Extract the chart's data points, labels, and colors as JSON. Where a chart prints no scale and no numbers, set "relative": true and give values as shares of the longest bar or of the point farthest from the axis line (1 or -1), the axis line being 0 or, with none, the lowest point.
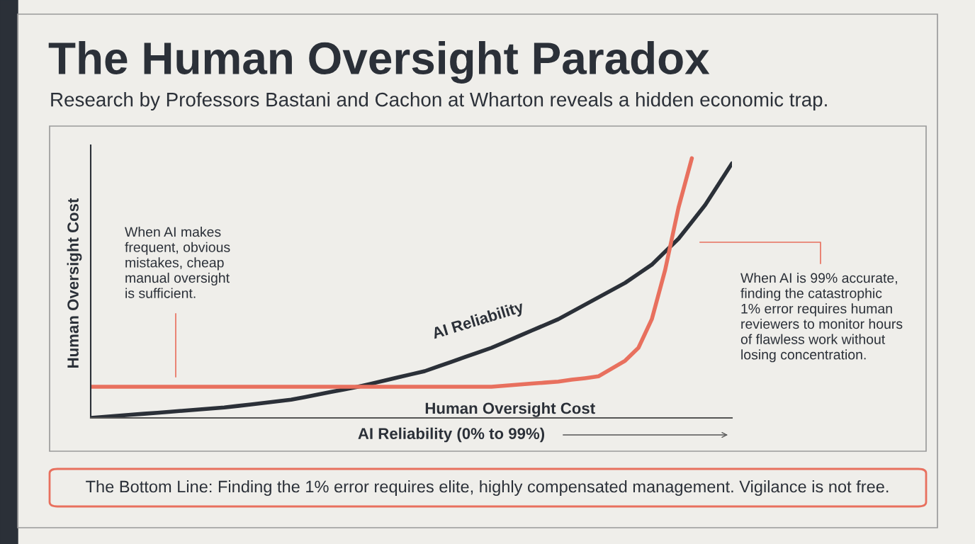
{
  "chart_data": {
    "type": "line",
    "relative": true,
    "title": "The Human Oversight Paradox",
    "subtitle": "Research by Professors Bastani and Cachon at Wharton reveals a hidden economic trap.",
    "xlabel": "AI Reliability (0% to 99%)",
    "ylabel": "Human Oversight Cost",
    "categories": [
      null,
      null,
      null,
      null,
      null,
      null,
      null,
      null,
      null,
      null,
      null,
      null,
      null,
      null,
      null,
      null,
      null,
      null,
      null,
      null,
      null,
      null,
      null,
      null,
      null,
      null,
      null,
      null,
      null,
      null,
      null,
      null,
      null,
      null,
      null,
      null,
      null,
      null,
      null,
      null,
      null,
      null,
      null,
      null,
      null,
      null,
      null,
      null,
      null
    ],
    "series": [
      {
        "name": "AI Reliability",
        "color": "#2b3038",
        "values": [
          0,
          0.004,
          0.008,
          0.012,
          0.016,
          0.02,
          0.024,
          0.028,
          0.032,
          0.036,
          0.04,
          0.046,
          0.052,
          0.058,
          0.064,
          0.07,
          0.08,
          0.09,
          0.1,
          0.11,
          0.12,
          0.132,
          0.144,
          0.156,
          0.168,
          0.18,
          0.198,
          0.216,
          0.234,
          0.252,
          0.27,
          0.292,
          0.314,
          0.336,
          0.358,
          0.38,
          0.408,
          0.436,
          0.464,
          0.492,
          0.52,
          0.555,
          0.59,
          0.64,
          0.69,
          0.755,
          0.82,
          0.9,
          0.98
        ]
      },
      {
        "name": "Human Oversight Cost",
        "color": "#e8705e",
        "values": [
          0.12,
          0.12,
          0.12,
          0.12,
          0.12,
          0.12,
          0.12,
          0.12,
          0.12,
          0.12,
          0.12,
          0.12,
          0.12,
          0.12,
          0.12,
          0.12,
          0.12,
          0.12,
          0.12,
          0.12,
          0.12,
          0.12,
          0.12,
          0.12,
          0.12,
          0.12,
          0.12,
          0.12,
          0.12,
          0.12,
          0.12,
          0.124,
          0.128,
          0.132,
          0.136,
          0.14,
          0.147,
          0.153,
          0.16,
          0.19,
          0.22,
          0.27,
          0.38,
          0.57,
          0.81,
          1.0,
          null,
          null,
          null
        ]
      }
    ],
    "annotations": [
      "When AI makes\nfrequent, obvious\nmistakes, cheap\nmanual oversight\nis sufficient.",
      "When AI is 99% accurate,\nfinding the catastrophic\n1% error requires human\nreviewers to monitor hours\nof flawless work without\nlosing concentration.",
      "The Bottom Line: Finding the 1% error requires elite, highly compensated management. Vigilance is not free."
    ],
    "legend": false,
    "grid": false,
    "marker": "none",
    "line_style": "solid"
  }
}
